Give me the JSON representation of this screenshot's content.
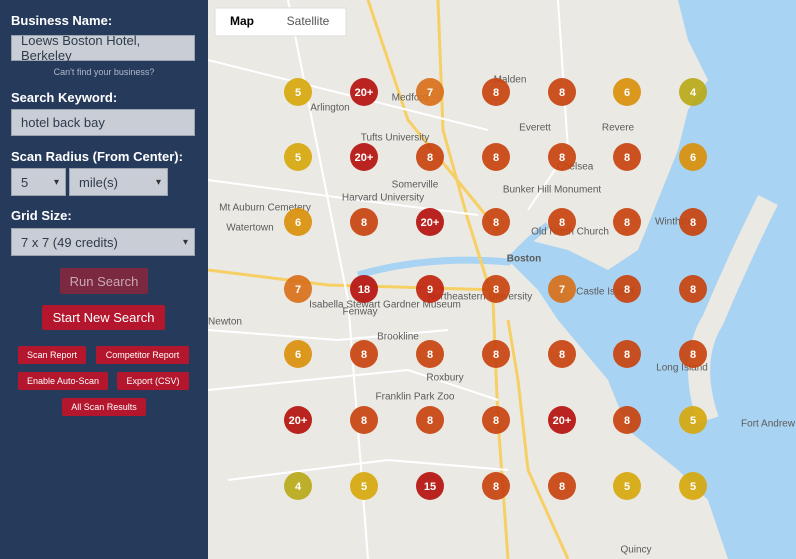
{
  "sidebar": {
    "business_label": "Business Name:",
    "business_value": "Loews Boston Hotel, Berkeley",
    "cant_find": "Can't find your business?",
    "keyword_label": "Search Keyword:",
    "keyword_value": "hotel back bay",
    "radius_label": "Scan Radius (From Center):",
    "radius_value": "5",
    "radius_unit": "mile(s)",
    "grid_label": "Grid Size:",
    "grid_value": "7 x 7 (49 credits)",
    "run_search": "Run Search",
    "start_new": "Start New Search",
    "buttons": [
      "Scan Report",
      "Competitor Report",
      "Enable Auto-Scan",
      "Export (CSV)",
      "All Scan Results"
    ]
  },
  "map": {
    "tabs": [
      "Map",
      "Satellite"
    ],
    "places": [
      "Boston",
      "Somerville",
      "Brookline",
      "Chelsea",
      "Everett",
      "Revere",
      "Arlington",
      "Medford",
      "Malden",
      "Watertown",
      "Newton",
      "Tufts University",
      "Harvard University",
      "Mt Auburn Cemetery",
      "Bunker Hill Monument",
      "Fenway",
      "Isabella Stewart Gardner Museum",
      "Northeastern University",
      "Franklin Park Zoo",
      "Roxbury",
      "Long Island",
      "Fort Andrew",
      "Quincy",
      "Winthrop",
      "Castle Island",
      "Old North Church"
    ],
    "markers": [
      [
        {
          "label": "5",
          "color": "#d6a80e"
        },
        {
          "label": "20+",
          "color": "#b5120f"
        },
        {
          "label": "7",
          "color": "#d8701a"
        },
        {
          "label": "8",
          "color": "#c8430f"
        },
        {
          "label": "8",
          "color": "#c8430f"
        },
        {
          "label": "6",
          "color": "#da900c"
        },
        {
          "label": "4",
          "color": "#b9a91a"
        }
      ],
      [
        {
          "label": "5",
          "color": "#d6a80e"
        },
        {
          "label": "20+",
          "color": "#b5120f"
        },
        {
          "label": "8",
          "color": "#c8430f"
        },
        {
          "label": "8",
          "color": "#c8430f"
        },
        {
          "label": "8",
          "color": "#c8430f"
        },
        {
          "label": "8",
          "color": "#c8430f"
        },
        {
          "label": "6",
          "color": "#da900c"
        }
      ],
      [
        {
          "label": "6",
          "color": "#da900c"
        },
        {
          "label": "8",
          "color": "#c8430f"
        },
        {
          "label": "20+",
          "color": "#b5120f"
        },
        {
          "label": "8",
          "color": "#c8430f"
        },
        {
          "label": "8",
          "color": "#c8430f"
        },
        {
          "label": "8",
          "color": "#c8430f"
        },
        {
          "label": "8",
          "color": "#c8430f"
        }
      ],
      [
        {
          "label": "7",
          "color": "#d8701a"
        },
        {
          "label": "18",
          "color": "#b5120f"
        },
        {
          "label": "9",
          "color": "#c0240d"
        },
        {
          "label": "8",
          "color": "#c8430f"
        },
        {
          "label": "7",
          "color": "#d8701a"
        },
        {
          "label": "8",
          "color": "#c8430f"
        },
        {
          "label": "8",
          "color": "#c8430f"
        }
      ],
      [
        {
          "label": "6",
          "color": "#da900c"
        },
        {
          "label": "8",
          "color": "#c8430f"
        },
        {
          "label": "8",
          "color": "#c8430f"
        },
        {
          "label": "8",
          "color": "#c8430f"
        },
        {
          "label": "8",
          "color": "#c8430f"
        },
        {
          "label": "8",
          "color": "#c8430f"
        },
        {
          "label": "8",
          "color": "#c8430f"
        }
      ],
      [
        {
          "label": "20+",
          "color": "#b5120f"
        },
        {
          "label": "8",
          "color": "#c8430f"
        },
        {
          "label": "8",
          "color": "#c8430f"
        },
        {
          "label": "8",
          "color": "#c8430f"
        },
        {
          "label": "20+",
          "color": "#b5120f"
        },
        {
          "label": "8",
          "color": "#c8430f"
        },
        {
          "label": "5",
          "color": "#d6a80e"
        }
      ],
      [
        {
          "label": "4",
          "color": "#b9a91a"
        },
        {
          "label": "5",
          "color": "#d6a80e"
        },
        {
          "label": "15",
          "color": "#b5120f"
        },
        {
          "label": "8",
          "color": "#c8430f"
        },
        {
          "label": "8",
          "color": "#c8430f"
        },
        {
          "label": "5",
          "color": "#d6a80e"
        },
        {
          "label": "5",
          "color": "#d6a80e"
        }
      ]
    ]
  }
}
